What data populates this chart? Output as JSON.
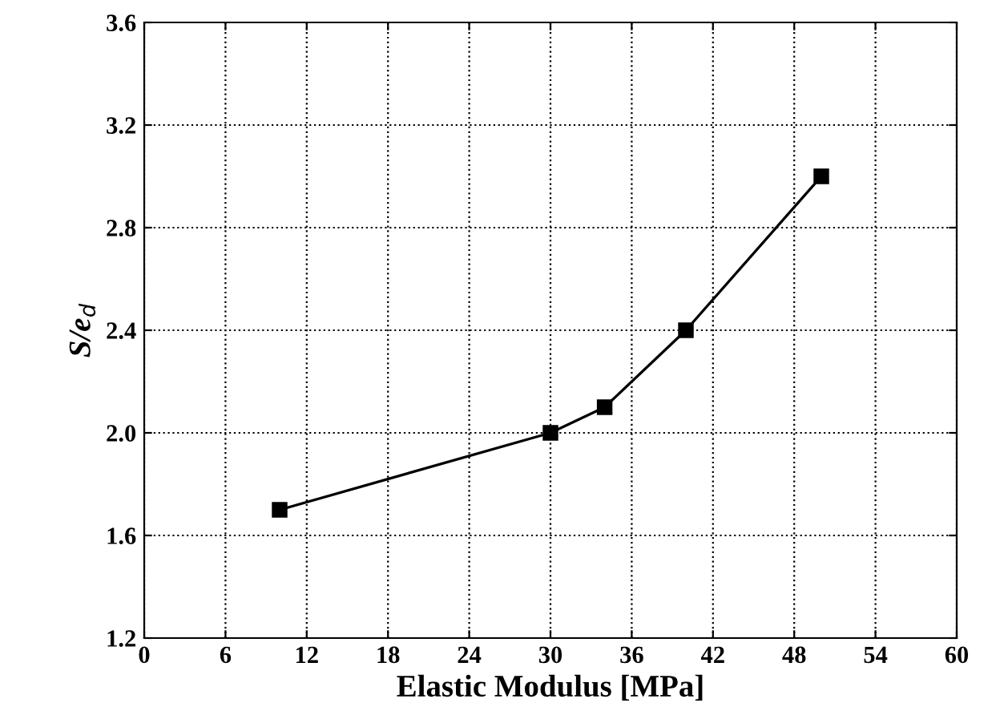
{
  "chart_data": {
    "type": "line",
    "xlabel": "Elastic Modulus [MPa]",
    "ylabel": "S/e$_{d}$",
    "x": [
      10,
      30,
      34,
      40,
      50
    ],
    "series": [
      {
        "color": "#000000",
        "values": [
          1.7,
          2.0,
          2.1,
          2.4,
          3.0
        ]
      }
    ],
    "xlim": [
      0,
      60
    ],
    "xticks": [
      0,
      6,
      12,
      18,
      24,
      30,
      36,
      42,
      48,
      54,
      60
    ],
    "ylim": [
      1.2,
      3.6
    ],
    "yticks": [
      1.2,
      1.6,
      {
        "value": 2,
        "label": "2.0"
      },
      2.4,
      2.8,
      3.2,
      3.6
    ],
    "grid": true,
    "marker": "square",
    "line_style": "solid"
  }
}
